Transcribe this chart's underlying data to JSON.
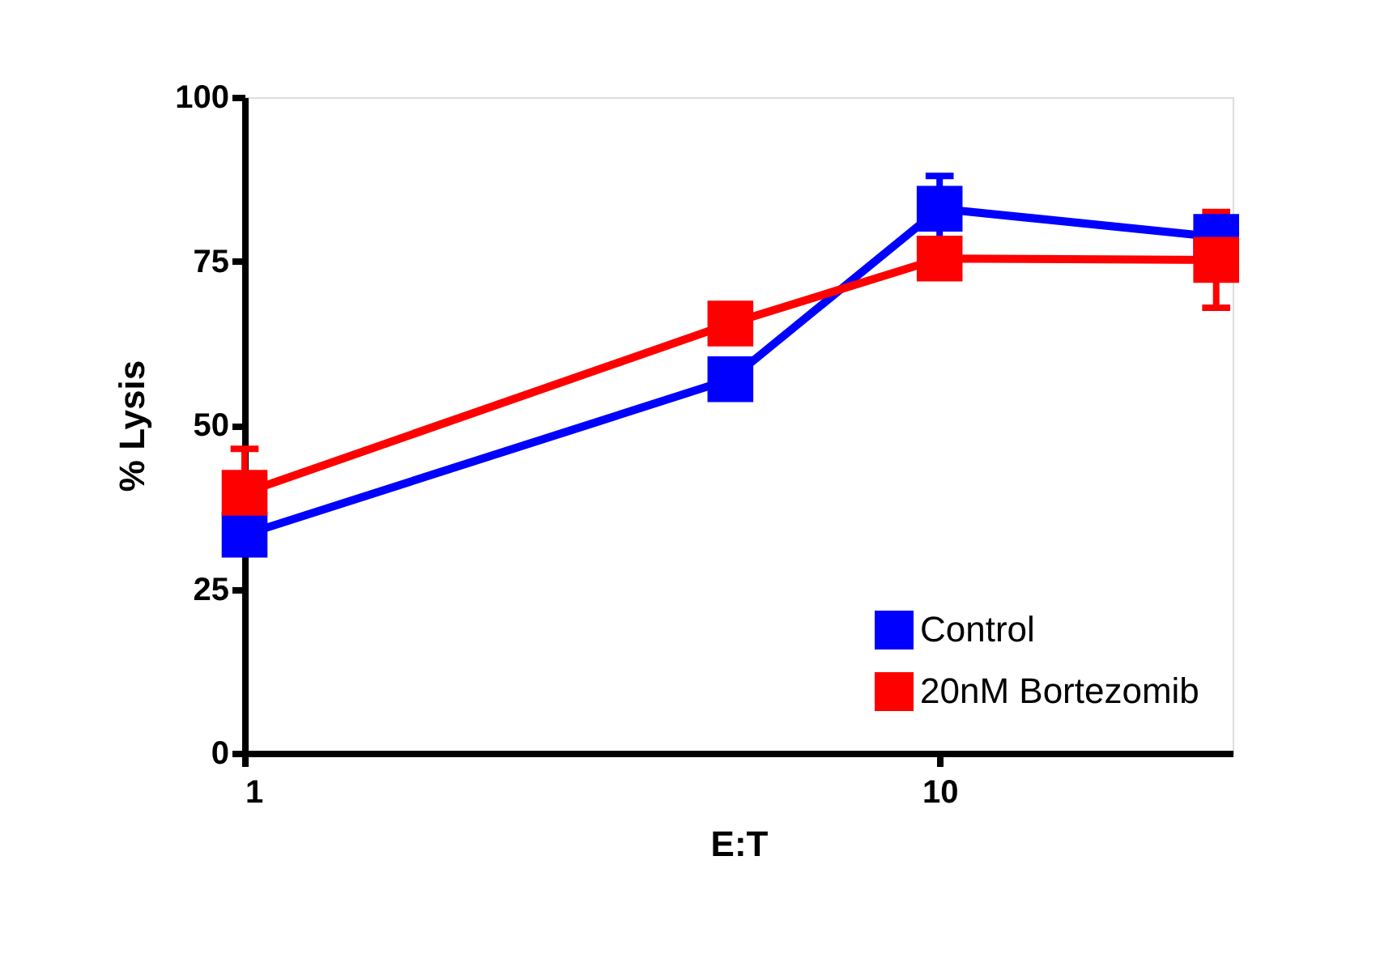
{
  "chart_data": {
    "type": "line",
    "xlabel": "E:T",
    "ylabel": "% Lysis",
    "log": "x",
    "xlim": [
      1,
      26.4
    ],
    "xticks": [
      1,
      10
    ],
    "ylim": [
      0,
      100
    ],
    "yticks": [
      0,
      25,
      50,
      75,
      100
    ],
    "grid": false,
    "legend": "bottom right",
    "marker": "square",
    "line_style": "solid",
    "series": [
      {
        "name": "Control",
        "color": "#0000ff",
        "x": [
          1,
          5,
          10,
          25
        ],
        "values": [
          33.3,
          57,
          83,
          78.7
        ],
        "errors": [
          null,
          null,
          5,
          null
        ]
      },
      {
        "name": "20nM Bortezomib",
        "color": "#ff0000",
        "x": [
          1,
          5,
          10,
          25
        ],
        "values": [
          39.7,
          65.5,
          75.4,
          75.2
        ],
        "errors": [
          6.7,
          null,
          null,
          7.3
        ]
      }
    ]
  }
}
